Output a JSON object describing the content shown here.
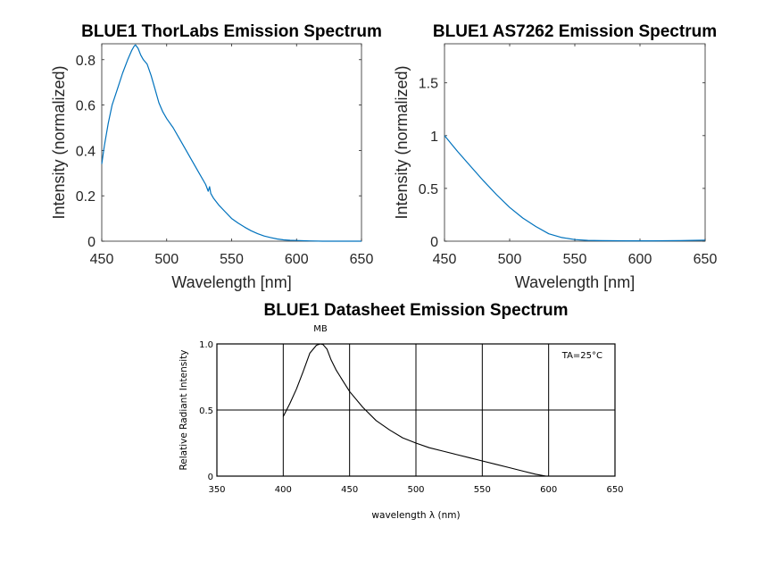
{
  "chart_data": [
    {
      "type": "line",
      "title": "BLUE1 ThorLabs Emission Spectrum",
      "xlabel": "Wavelength [nm]",
      "ylabel": "Intensity (normalized)",
      "xlim": [
        450,
        650
      ],
      "ylim": [
        0,
        0.87
      ],
      "xticks": [
        "450",
        "500",
        "550",
        "600",
        "650"
      ],
      "yticks": [
        "0",
        "0.2",
        "0.4",
        "0.6",
        "0.8"
      ],
      "color": "#0072BD",
      "grid": false,
      "series": [
        {
          "x": [
            450,
            452,
            455,
            458,
            462,
            466,
            470,
            473,
            475,
            476,
            478,
            480,
            482,
            485,
            488,
            491,
            494,
            497,
            500,
            505,
            510,
            515,
            520,
            525,
            530,
            532,
            533,
            534,
            536,
            540,
            545,
            550,
            555,
            560,
            565,
            570,
            575,
            580,
            585,
            590,
            595,
            600,
            605,
            610,
            620,
            630,
            640,
            650
          ],
          "y": [
            0.34,
            0.42,
            0.52,
            0.6,
            0.67,
            0.74,
            0.8,
            0.84,
            0.86,
            0.865,
            0.85,
            0.82,
            0.8,
            0.78,
            0.73,
            0.67,
            0.61,
            0.57,
            0.54,
            0.5,
            0.45,
            0.4,
            0.35,
            0.3,
            0.25,
            0.22,
            0.24,
            0.21,
            0.19,
            0.16,
            0.13,
            0.1,
            0.08,
            0.062,
            0.046,
            0.033,
            0.023,
            0.016,
            0.01,
            0.006,
            0.004,
            0.003,
            0.002,
            0.001,
            0.0,
            0.0,
            0.0,
            0.0
          ]
        }
      ]
    },
    {
      "type": "line",
      "title": "BLUE1 AS7262 Emission Spectrum",
      "xlabel": "Wavelength [nm]",
      "ylabel": "Intensity (normalized)",
      "xlim": [
        450,
        650
      ],
      "ylim": [
        0,
        1.87
      ],
      "xticks": [
        "450",
        "500",
        "550",
        "600",
        "650"
      ],
      "yticks": [
        "0",
        "0.5",
        "1",
        "1.5"
      ],
      "color": "#0072BD",
      "grid": false,
      "series": [
        {
          "x": [
            450,
            460,
            470,
            480,
            490,
            500,
            510,
            520,
            530,
            540,
            550,
            560,
            570,
            580,
            590,
            600,
            610,
            620,
            630,
            640,
            650
          ],
          "y": [
            1.0,
            0.85,
            0.71,
            0.57,
            0.44,
            0.32,
            0.22,
            0.14,
            0.07,
            0.035,
            0.015,
            0.008,
            0.005,
            0.004,
            0.003,
            0.003,
            0.003,
            0.004,
            0.005,
            0.008,
            0.01
          ]
        }
      ]
    },
    {
      "type": "line",
      "title": "BLUE1 Datasheet Emission Spectrum",
      "xlabel": "wavelength λ (nm)",
      "ylabel": "Relative Radiant Intensity",
      "xlim": [
        350,
        650
      ],
      "ylim": [
        0,
        1.0
      ],
      "xticks": [
        "350",
        "400",
        "450",
        "500",
        "550",
        "600",
        "650"
      ],
      "yticks": [
        "0",
        "0.5",
        "1.0"
      ],
      "color": "#000000",
      "grid": true,
      "annotations": [
        "MB",
        "TA=25°C"
      ],
      "series": [
        {
          "x": [
            400,
            405,
            410,
            415,
            420,
            425,
            428,
            430,
            433,
            436,
            440,
            445,
            450,
            460,
            470,
            480,
            490,
            500,
            510,
            520,
            530,
            540,
            550,
            560,
            570,
            580,
            590,
            598
          ],
          "y": [
            0.45,
            0.55,
            0.66,
            0.79,
            0.93,
            0.99,
            1.0,
            0.995,
            0.96,
            0.88,
            0.8,
            0.72,
            0.64,
            0.52,
            0.42,
            0.35,
            0.29,
            0.25,
            0.215,
            0.19,
            0.165,
            0.14,
            0.115,
            0.09,
            0.065,
            0.04,
            0.015,
            0.0
          ]
        }
      ]
    }
  ]
}
